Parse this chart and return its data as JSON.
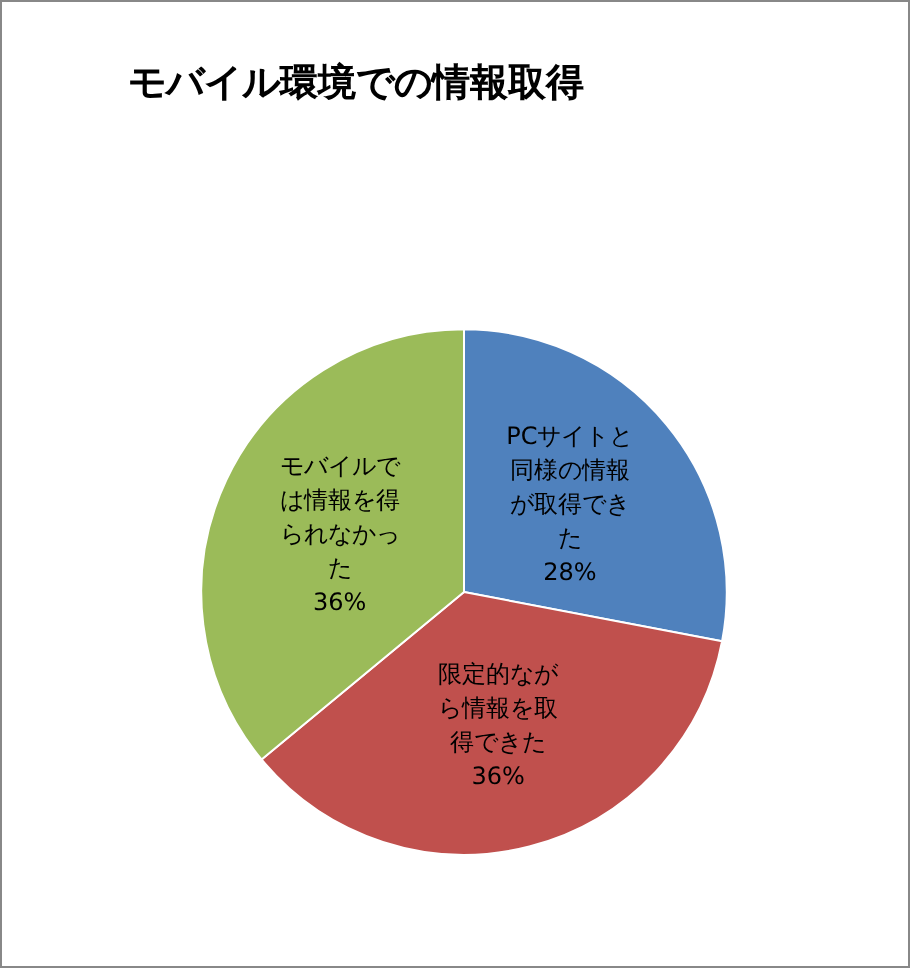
{
  "chart_data": {
    "type": "pie",
    "title": "モバイル環境での情報取得",
    "categories": [
      "PCサイトと同様の情報が取得できた",
      "限定的ながら情報を取得できた",
      "モバイルでは情報を得られなかった"
    ],
    "values": [
      28,
      36,
      36
    ],
    "value_labels": [
      "28%",
      "36%",
      "36%"
    ],
    "colors": [
      "#4f81bd",
      "#c0504d",
      "#9bbb59"
    ],
    "legend": false
  }
}
